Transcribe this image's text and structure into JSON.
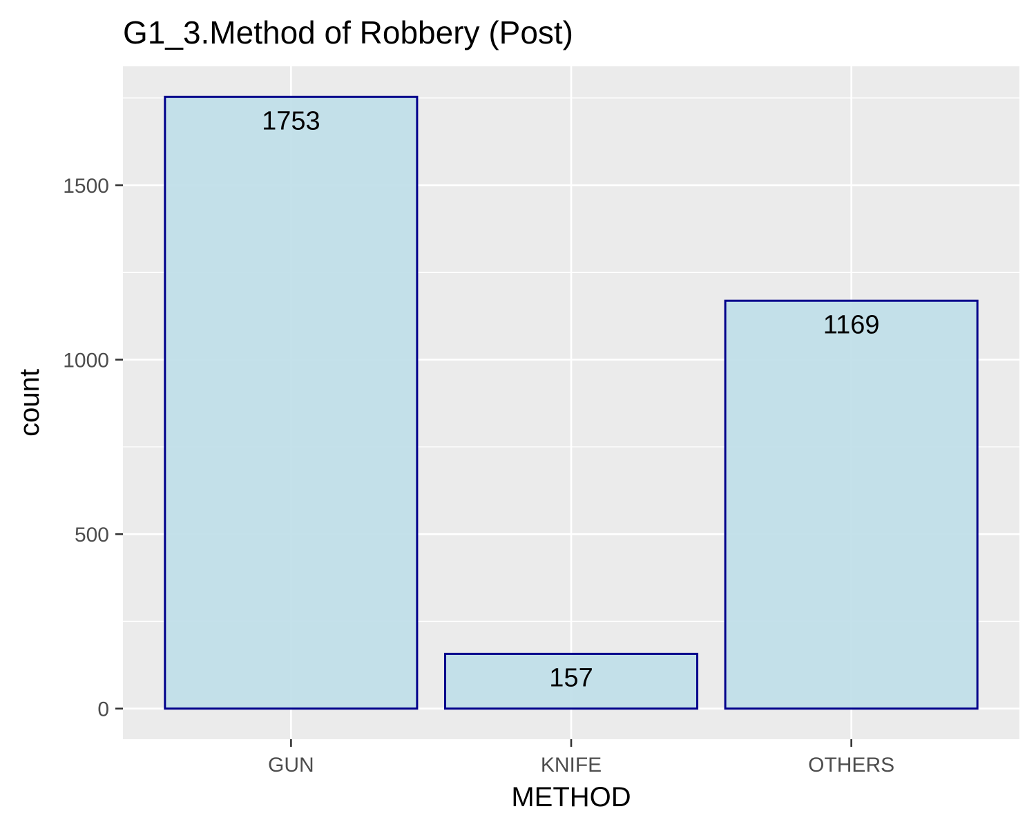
{
  "chart_data": {
    "type": "bar",
    "title": "G1_3.Method of Robbery (Post)",
    "xlabel": "METHOD",
    "ylabel": "count",
    "categories": [
      "GUN",
      "KNIFE",
      "OTHERS"
    ],
    "values": [
      1753,
      157,
      1169
    ],
    "data_labels": [
      "1753",
      "157",
      "1169"
    ],
    "y_ticks": [
      0,
      500,
      1000,
      1500
    ],
    "y_tick_labels": [
      "0",
      "500",
      "1000",
      "1500"
    ],
    "ylim": [
      -87.65,
      1840.65
    ],
    "grid": true,
    "legend": "none",
    "colors": {
      "bar_fill": "#c1dfe9",
      "bar_stroke": "#00008b",
      "panel_background": "#ebebeb",
      "grid_major": "#ffffff",
      "grid_minor": "#ffffff",
      "tick_text": "#4d4d4d",
      "text": "#000000"
    }
  }
}
